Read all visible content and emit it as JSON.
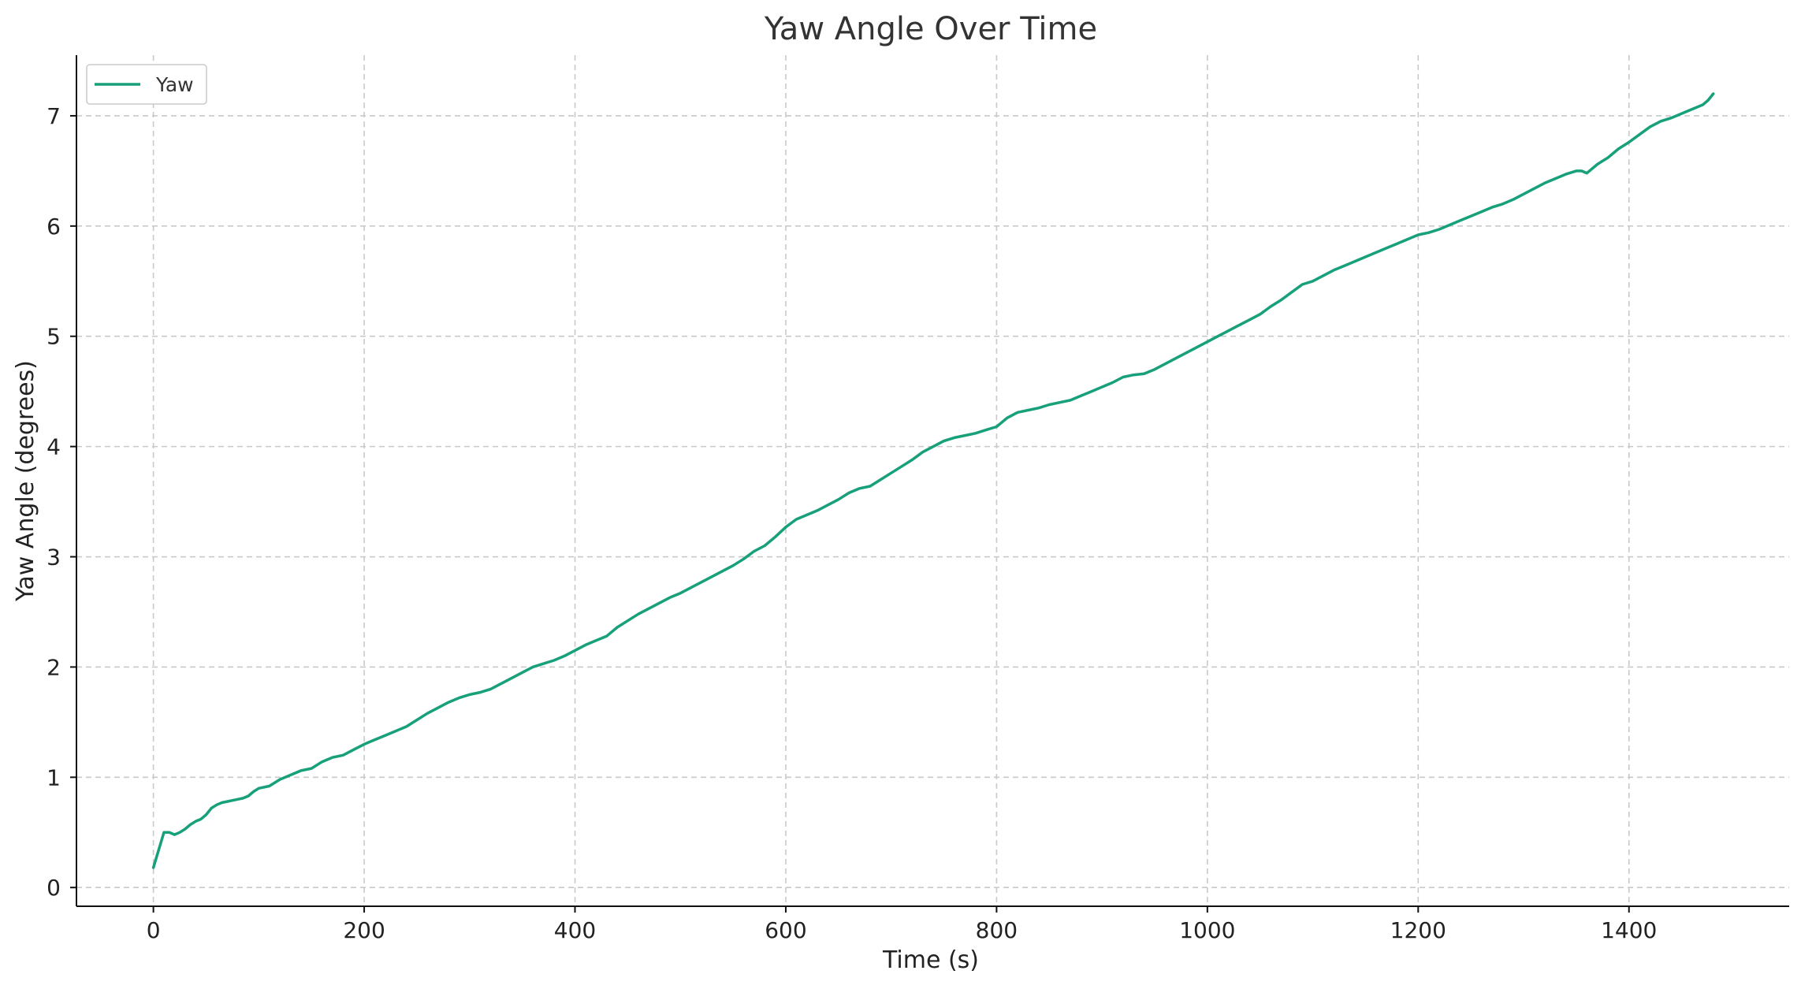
{
  "chart_data": {
    "type": "line",
    "title": "Yaw Angle Over Time",
    "xlabel": "Time (s)",
    "ylabel": "Yaw Angle (degrees)",
    "xlim": [
      -73,
      1552
    ],
    "ylim": [
      -0.17,
      7.55
    ],
    "xticks": [
      0,
      200,
      400,
      600,
      800,
      1000,
      1200,
      1400
    ],
    "yticks": [
      0,
      1,
      2,
      3,
      4,
      5,
      6,
      7
    ],
    "grid": true,
    "legend": {
      "position": "top-left"
    },
    "series": [
      {
        "name": "Yaw",
        "color": "#17a07a",
        "x": [
          0,
          10,
          15,
          20,
          25,
          30,
          35,
          40,
          45,
          50,
          55,
          60,
          65,
          70,
          75,
          80,
          85,
          90,
          95,
          100,
          110,
          120,
          130,
          140,
          150,
          160,
          170,
          180,
          190,
          200,
          210,
          220,
          230,
          240,
          250,
          260,
          270,
          280,
          290,
          300,
          310,
          320,
          330,
          340,
          350,
          360,
          370,
          380,
          390,
          400,
          410,
          420,
          430,
          440,
          450,
          460,
          470,
          480,
          490,
          500,
          510,
          520,
          530,
          540,
          550,
          560,
          570,
          580,
          590,
          600,
          610,
          620,
          630,
          640,
          650,
          660,
          670,
          680,
          690,
          700,
          710,
          720,
          730,
          740,
          750,
          760,
          770,
          780,
          790,
          800,
          810,
          820,
          830,
          840,
          850,
          860,
          870,
          880,
          890,
          900,
          910,
          920,
          930,
          940,
          950,
          960,
          970,
          980,
          990,
          1000,
          1010,
          1020,
          1030,
          1040,
          1050,
          1060,
          1070,
          1080,
          1090,
          1100,
          1110,
          1120,
          1130,
          1140,
          1150,
          1160,
          1170,
          1180,
          1190,
          1200,
          1210,
          1220,
          1230,
          1240,
          1250,
          1260,
          1270,
          1280,
          1290,
          1300,
          1310,
          1320,
          1330,
          1340,
          1350,
          1355,
          1360,
          1370,
          1380,
          1390,
          1400,
          1410,
          1420,
          1430,
          1440,
          1450,
          1460,
          1470,
          1475,
          1480
        ],
        "values": [
          0.18,
          0.5,
          0.5,
          0.48,
          0.5,
          0.53,
          0.57,
          0.6,
          0.62,
          0.66,
          0.72,
          0.75,
          0.77,
          0.78,
          0.79,
          0.8,
          0.81,
          0.83,
          0.87,
          0.9,
          0.92,
          0.98,
          1.02,
          1.06,
          1.08,
          1.14,
          1.18,
          1.2,
          1.25,
          1.3,
          1.34,
          1.38,
          1.42,
          1.46,
          1.52,
          1.58,
          1.63,
          1.68,
          1.72,
          1.75,
          1.77,
          1.8,
          1.85,
          1.9,
          1.95,
          2.0,
          2.03,
          2.06,
          2.1,
          2.15,
          2.2,
          2.24,
          2.28,
          2.36,
          2.42,
          2.48,
          2.53,
          2.58,
          2.63,
          2.67,
          2.72,
          2.77,
          2.82,
          2.87,
          2.92,
          2.98,
          3.05,
          3.1,
          3.18,
          3.27,
          3.34,
          3.38,
          3.42,
          3.47,
          3.52,
          3.58,
          3.62,
          3.64,
          3.7,
          3.76,
          3.82,
          3.88,
          3.95,
          4.0,
          4.05,
          4.08,
          4.1,
          4.12,
          4.15,
          4.18,
          4.26,
          4.31,
          4.33,
          4.35,
          4.38,
          4.4,
          4.42,
          4.46,
          4.5,
          4.54,
          4.58,
          4.63,
          4.65,
          4.66,
          4.7,
          4.75,
          4.8,
          4.85,
          4.9,
          4.95,
          5.0,
          5.05,
          5.1,
          5.15,
          5.2,
          5.27,
          5.33,
          5.4,
          5.47,
          5.5,
          5.55,
          5.6,
          5.64,
          5.68,
          5.72,
          5.76,
          5.8,
          5.84,
          5.88,
          5.92,
          5.94,
          5.97,
          6.01,
          6.05,
          6.09,
          6.13,
          6.17,
          6.2,
          6.24,
          6.29,
          6.34,
          6.39,
          6.43,
          6.47,
          6.5,
          6.5,
          6.48,
          6.56,
          6.62,
          6.7,
          6.76,
          6.83,
          6.9,
          6.95,
          6.98,
          7.02,
          7.06,
          7.1,
          7.14,
          7.2
        ]
      }
    ]
  }
}
